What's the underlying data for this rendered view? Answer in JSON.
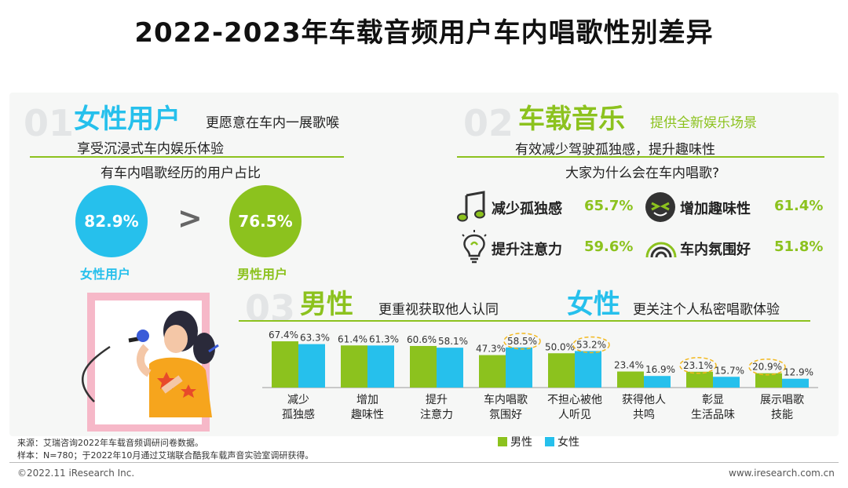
{
  "page": {
    "title": "2022-2023年车载音频用户车内唱歌性别差异"
  },
  "section1": {
    "num": "01",
    "heading": "女性用户",
    "line1": "更愿意在车内一展歌喉",
    "line2": "享受沉浸式车内娱乐体验",
    "subheading": "有车内唱歌经历的用户占比",
    "female_pct": "82.9%",
    "male_pct": "76.5%",
    "female_label": "女性用户",
    "male_label": "男性用户",
    "compare": ">"
  },
  "section2": {
    "num": "02",
    "heading": "车载音乐",
    "line1": "提供全新娱乐场景",
    "line2": "有效减少驾驶孤独感，提升趣味性",
    "subheading": "大家为什么会在车内唱歌?",
    "reasons": [
      {
        "icon": "music-note-icon",
        "label": "减少孤独感",
        "pct": "65.7%"
      },
      {
        "icon": "fun-face-icon",
        "label": "增加趣味性",
        "pct": "61.4%"
      },
      {
        "icon": "lightbulb-icon",
        "label": "提升注意力",
        "pct": "59.6%"
      },
      {
        "icon": "signal-wave-icon",
        "label": "车内氛围好",
        "pct": "51.8%"
      }
    ]
  },
  "section3": {
    "num": "03",
    "heading_male": "男性",
    "text_male": "更重视获取他人认同",
    "heading_female": "女性",
    "text_female": "更关注个人私密唱歌体验"
  },
  "chart_data": {
    "type": "bar",
    "categories": [
      "减少孤独感",
      "增加趣味性",
      "提升注意力",
      "车内唱歌氛围好",
      "不担心被他人听见",
      "获得他人共鸣",
      "彰显生活品味",
      "展示唱歌技能"
    ],
    "category_lines": [
      [
        "减少",
        "孤独感"
      ],
      [
        "增加",
        "趣味性"
      ],
      [
        "提升",
        "注意力"
      ],
      [
        "车内唱歌",
        "氛围好"
      ],
      [
        "不担心被他",
        "人听见"
      ],
      [
        "获得他人",
        "共鸣"
      ],
      [
        "彰显",
        "生活品味"
      ],
      [
        "展示唱歌",
        "技能"
      ]
    ],
    "series": [
      {
        "name": "男性",
        "color": "#8cc21e",
        "values": [
          67.4,
          61.4,
          60.6,
          47.3,
          50.0,
          23.4,
          23.1,
          20.9
        ]
      },
      {
        "name": "女性",
        "color": "#26c0ec",
        "values": [
          63.3,
          61.3,
          58.1,
          58.5,
          53.2,
          16.9,
          15.7,
          12.9
        ]
      }
    ],
    "value_labels": {
      "男性": [
        "67.4%",
        "61.4%",
        "60.6%",
        "47.3%",
        "50.0%",
        "23.4%",
        "23.1%",
        "20.9%"
      ],
      "女性": [
        "63.3%",
        "61.3%",
        "58.1%",
        "58.5%",
        "53.2%",
        "16.9%",
        "15.7%",
        "12.9%"
      ]
    },
    "highlighted": [
      {
        "series": "女性",
        "index": 3
      },
      {
        "series": "女性",
        "index": 4
      },
      {
        "series": "男性",
        "index": 6
      },
      {
        "series": "男性",
        "index": 7
      }
    ],
    "ylim": [
      0,
      80
    ],
    "legend_position": "bottom"
  },
  "footer": {
    "source": "来源：艾瑞咨询2022年车载音频调研问卷数据。",
    "sample": "样本：N=780；于2022年10月通过艾瑞联合酷我车载声音实验室调研获得。",
    "copyright": "©2022.11 iResearch Inc.",
    "website": "www.iresearch.com.cn"
  }
}
